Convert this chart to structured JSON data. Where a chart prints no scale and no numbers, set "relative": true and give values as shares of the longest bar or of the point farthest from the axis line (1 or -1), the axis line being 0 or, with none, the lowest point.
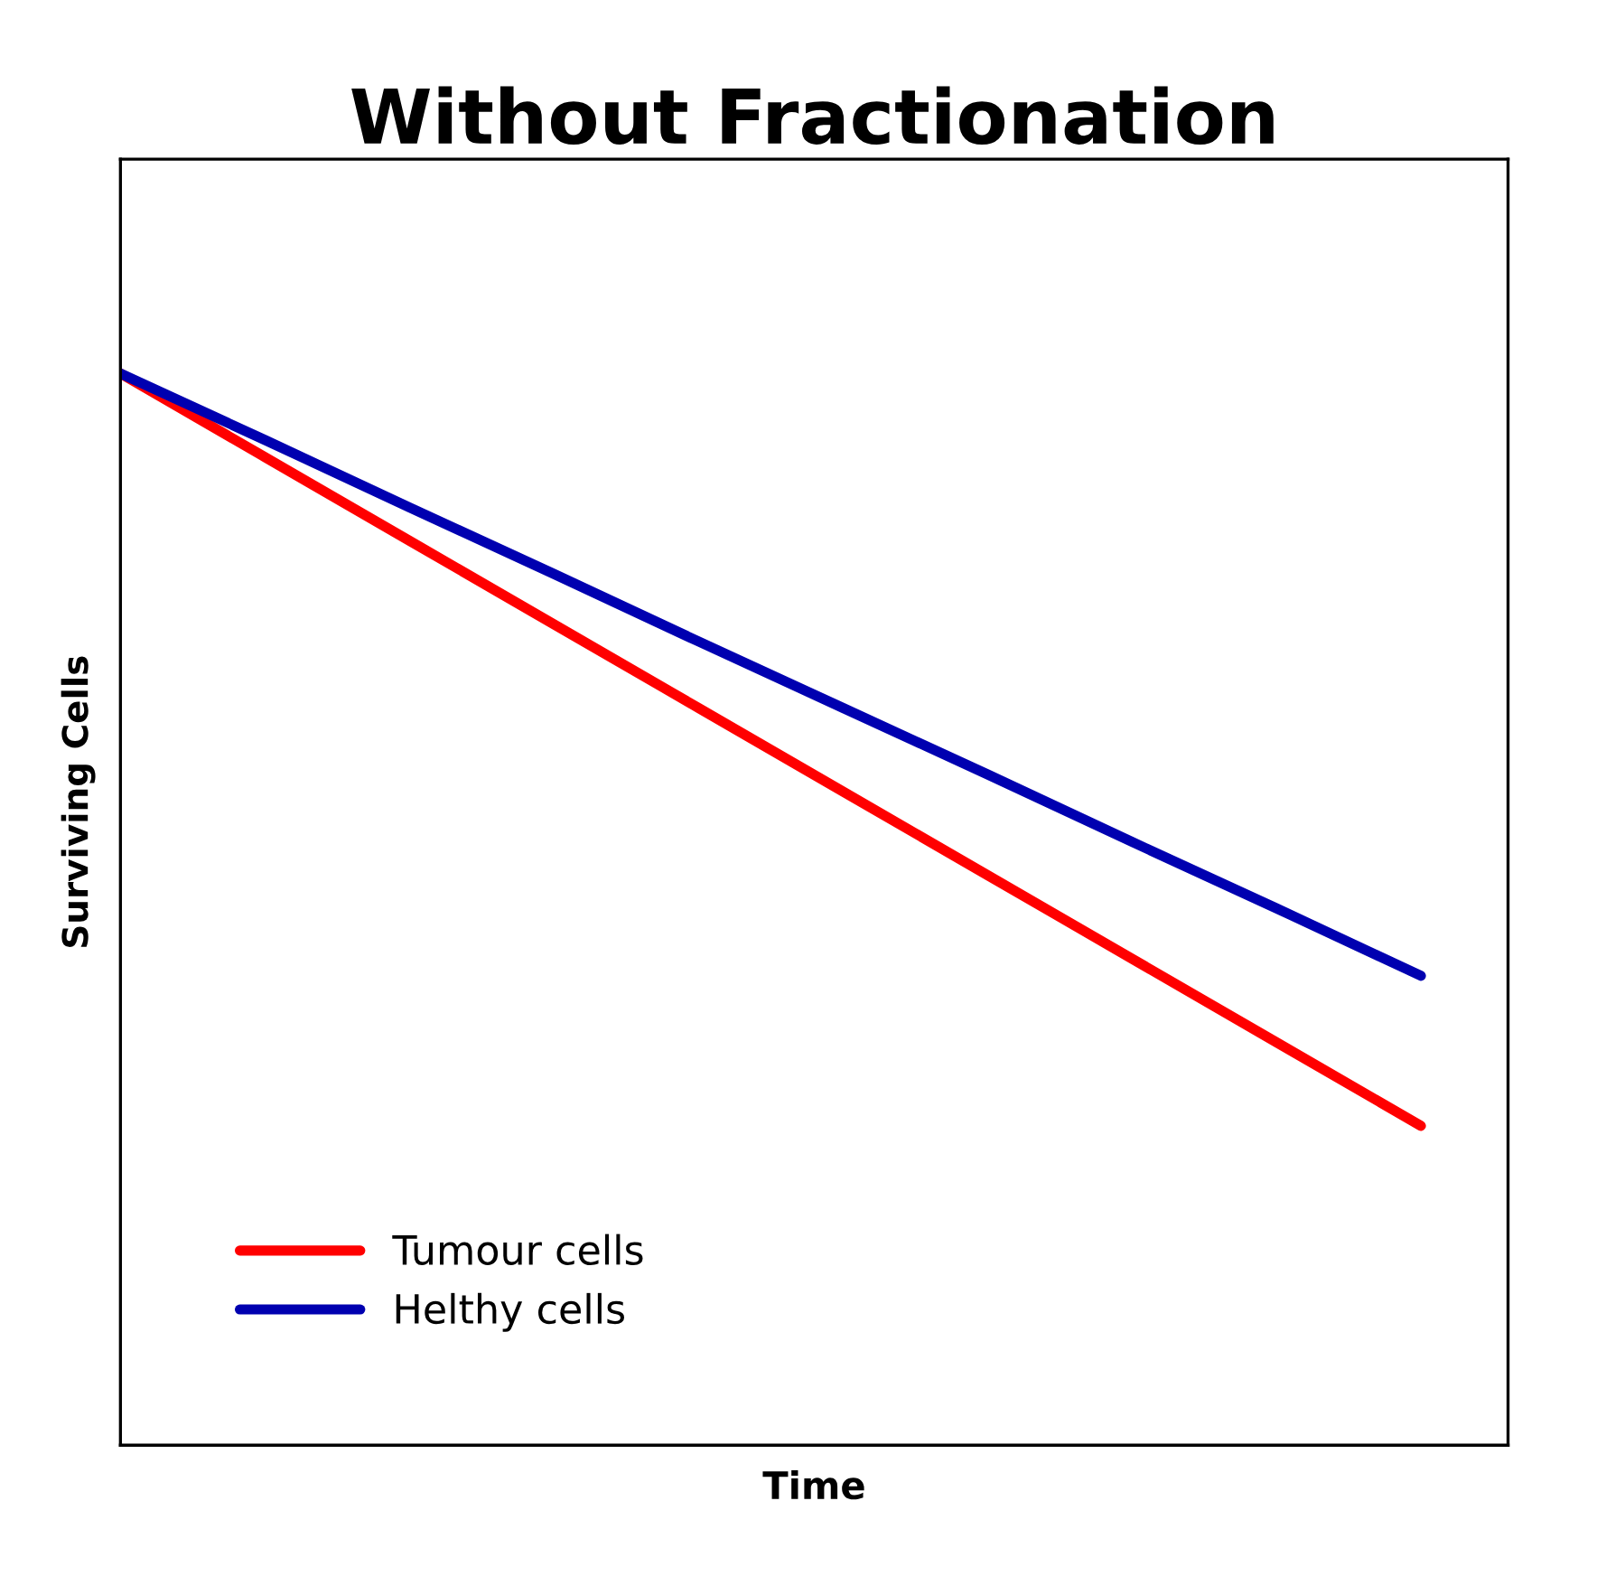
{
  "chart_data": {
    "type": "line",
    "title": "Without Fractionation",
    "xlabel": "Time",
    "ylabel": "Surviving Cells",
    "relative": true,
    "categories": [
      null,
      null,
      null,
      null,
      null,
      null,
      null,
      null,
      null,
      null
    ],
    "series": [
      {
        "name": "Tumour cells",
        "color": "#ff0000",
        "values": [
          1,
          0.922,
          0.844,
          0.766,
          0.688,
          0.61,
          0.532,
          0.454,
          0.376,
          0.298
        ]
      },
      {
        "name": "Helthy cells",
        "color": "#0000b0",
        "values": [
          1,
          0.938,
          0.875,
          0.813,
          0.75,
          0.688,
          0.626,
          0.563,
          0.501,
          0.438
        ]
      }
    ],
    "legend": "bottom left",
    "marker": "none",
    "line_style": "solid"
  }
}
